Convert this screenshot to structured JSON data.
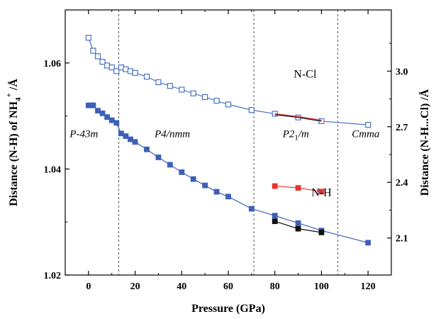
{
  "chart_data": {
    "type": "scatter",
    "xlabel": "Pressure (GPa)",
    "ylabel_left_prefix": "Distance (N-H) of NH",
    "ylabel_left_sub": "4",
    "ylabel_left_sup": "+",
    "ylabel_left_suffix": " /Å",
    "ylabel_right": "Distance (N-H...Cl) /Å",
    "xlim": [
      -10,
      130
    ],
    "ylim_left": [
      1.02,
      1.07
    ],
    "ylim_right": [
      1.9,
      3.33
    ],
    "x_ticks": [
      0,
      20,
      40,
      60,
      80,
      100,
      120
    ],
    "x_tick_labels": [
      "0",
      "20",
      "40",
      "60",
      "80",
      "100",
      "120"
    ],
    "y_left_ticks": [
      1.02,
      1.04,
      1.06
    ],
    "y_left_tick_labels": [
      "1.02",
      "1.04",
      "1.06"
    ],
    "y_right_ticks": [
      2.1,
      2.4,
      2.7,
      3.0
    ],
    "y_right_tick_labels": [
      "2.1",
      "2.4",
      "2.7",
      "3.0"
    ],
    "phase_boundaries": [
      13,
      71,
      107
    ],
    "phase_labels": [
      {
        "text": "P-43m",
        "x": -2,
        "y_left": 1.046
      },
      {
        "text": "P4/nmm",
        "x": 36,
        "y_left": 1.046
      },
      {
        "text": "P21/m",
        "x": 89,
        "y_left": 1.046
      },
      {
        "text": "Cmma",
        "x": 119,
        "y_left": 1.046
      }
    ],
    "phase_p21m_parts": {
      "a": "P2",
      "b": "1",
      "c": "/m"
    },
    "series_labels": [
      {
        "text": "N-Cl",
        "x": 93,
        "y_left_label_pos": 1.0572
      },
      {
        "text": "N-H",
        "x": 100,
        "y_left_label_pos": 1.0349
      }
    ],
    "series": [
      {
        "axis": "right",
        "marker": "open-square",
        "color": "#4a72c4",
        "x": [
          0,
          2,
          4,
          6,
          8,
          10,
          12,
          14,
          16,
          18,
          20,
          25,
          30,
          35,
          40,
          45,
          50,
          55,
          60,
          70,
          80,
          90,
          100,
          120
        ],
        "y": [
          3.18,
          3.11,
          3.08,
          3.05,
          3.03,
          3.02,
          3.0,
          3.02,
          3.01,
          3.0,
          2.99,
          2.97,
          2.94,
          2.92,
          2.9,
          2.88,
          2.86,
          2.84,
          2.82,
          2.79,
          2.77,
          2.75,
          2.73,
          2.71
        ]
      },
      {
        "axis": "left",
        "marker": "filled-square",
        "color": "#3d5fb8",
        "x": [
          0,
          1,
          2,
          4,
          6,
          8,
          10,
          12,
          14,
          16,
          18,
          20,
          25,
          30,
          35,
          40,
          45,
          50,
          55,
          60,
          70,
          80,
          90,
          100,
          120
        ],
        "y": [
          1.052,
          1.052,
          1.052,
          1.051,
          1.0505,
          1.0498,
          1.0492,
          1.0487,
          1.0467,
          1.0462,
          1.0456,
          1.0451,
          1.0437,
          1.0422,
          1.0408,
          1.0394,
          1.0381,
          1.0369,
          1.0357,
          1.0348,
          1.0325,
          1.0312,
          1.0298,
          1.0284,
          1.0261
        ]
      },
      {
        "axis": "right",
        "marker": "filled-square",
        "color": "#e8322e",
        "x": [
          80,
          90,
          100
        ],
        "y": [
          2.38,
          2.37,
          2.35
        ]
      },
      {
        "axis": "right",
        "marker": "filled-square",
        "color": "#111111",
        "x": [
          80,
          90,
          100
        ],
        "y": [
          2.19,
          2.15,
          2.13
        ]
      },
      {
        "axis": "right",
        "marker": "line-only",
        "color": "#e8322e",
        "x": [
          80,
          90,
          100
        ],
        "y": [
          2.77,
          2.755,
          2.735
        ]
      },
      {
        "axis": "right",
        "marker": "line-only",
        "color": "#111111",
        "x": [
          80,
          90,
          100
        ],
        "y": [
          2.765,
          2.75,
          2.73
        ]
      }
    ]
  }
}
